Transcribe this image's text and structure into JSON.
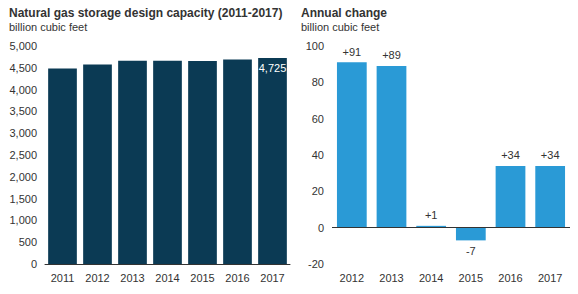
{
  "chart_data": [
    {
      "type": "bar",
      "title": "Natural gas storage design capacity (2011-2017)",
      "subtitle": "billion cubic feet",
      "categories": [
        "2011",
        "2012",
        "2013",
        "2014",
        "2015",
        "2016",
        "2017"
      ],
      "values": [
        4483,
        4574,
        4663,
        4664,
        4657,
        4691,
        4725
      ],
      "value_labels": [
        null,
        null,
        null,
        null,
        null,
        null,
        "4,725"
      ],
      "data_labels": true,
      "color": "#0b3a54",
      "ylim": [
        0,
        5000
      ],
      "yticks": [
        0,
        500,
        {
          "value": 1000,
          "label": "1,000"
        },
        {
          "value": 1500,
          "label": "1,500"
        },
        {
          "value": 2000,
          "label": "2,000"
        },
        {
          "value": 2500,
          "label": "2,500"
        },
        {
          "value": 3000,
          "label": "3,000"
        },
        {
          "value": 3500,
          "label": "3,500"
        },
        {
          "value": 4000,
          "label": "4,000"
        },
        {
          "value": 4500,
          "label": "4,500"
        },
        {
          "value": 5000,
          "label": "5,000"
        }
      ],
      "grid": false
    },
    {
      "type": "bar",
      "title": "Annual change",
      "subtitle": "billion cubic feet",
      "categories": [
        "2012",
        "2013",
        "2014",
        "2015",
        "2016",
        "2017"
      ],
      "values": [
        91,
        89,
        1,
        -7,
        34,
        34
      ],
      "value_labels": [
        "+91",
        "+89",
        "+1",
        "-7",
        "+34",
        "+34"
      ],
      "data_labels": true,
      "color": "#2a9ad6",
      "ylim": [
        -20,
        100
      ],
      "yticks": [
        -20,
        0,
        20,
        40,
        60,
        80,
        100
      ],
      "grid": false
    }
  ]
}
